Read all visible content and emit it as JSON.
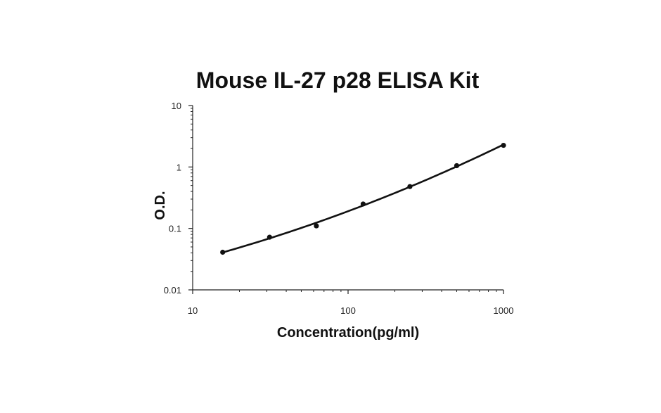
{
  "chart_data": {
    "type": "scatter",
    "title": "Mouse IL-27 p28 ELISA Kit",
    "xlabel": "Concentration(pg/ml)",
    "ylabel": "O.D.",
    "xscale": "log",
    "yscale": "log",
    "xlim": [
      10,
      1000
    ],
    "ylim": [
      0.01,
      10
    ],
    "x_ticks": [
      "10",
      "100",
      "1000"
    ],
    "y_ticks": [
      "0.01",
      "0.1",
      "1",
      "10"
    ],
    "grid": false,
    "legend": "none",
    "series": [
      {
        "points": [
          {
            "x": 15.6,
            "y": 0.041
          },
          {
            "x": 31.25,
            "y": 0.072
          },
          {
            "x": 62.5,
            "y": 0.11
          },
          {
            "x": 125,
            "y": 0.25
          },
          {
            "x": 250,
            "y": 0.48
          },
          {
            "x": 500,
            "y": 1.05
          },
          {
            "x": 1000,
            "y": 2.25
          }
        ]
      }
    ],
    "colors": {
      "points": "#111111",
      "curve": "#111111",
      "axis": "#222222"
    }
  }
}
